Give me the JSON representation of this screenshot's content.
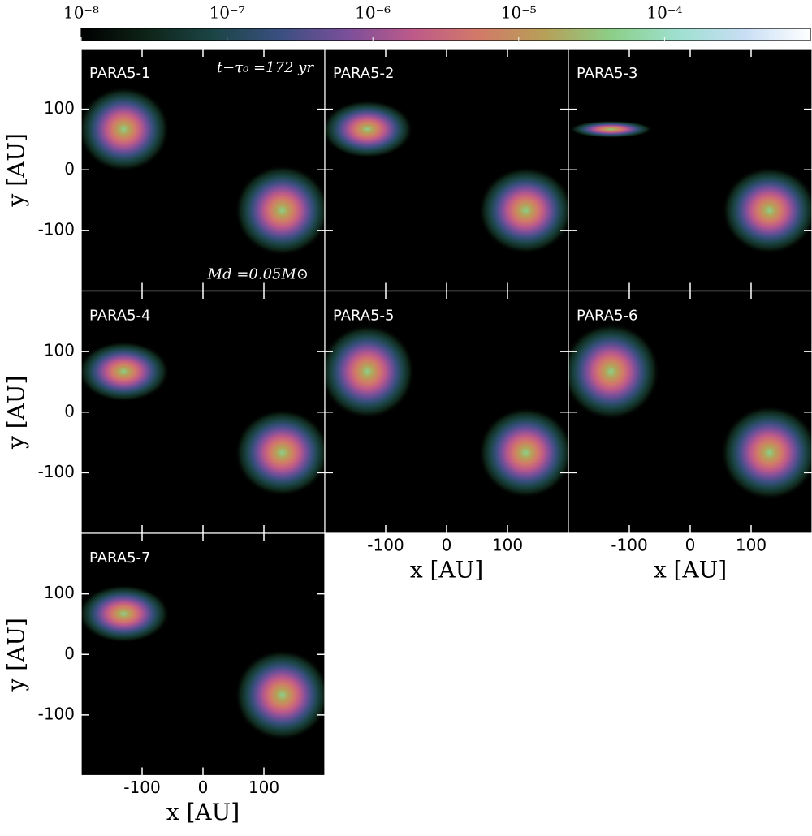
{
  "chart_data": {
    "type": "image",
    "colorbar": {
      "clim": [
        1e-08,
        0.001
      ],
      "log": true,
      "ticks": [
        {
          "value": 1e-08,
          "label": "10⁻⁸"
        },
        {
          "value": 1e-07,
          "label": "10⁻⁷"
        },
        {
          "value": 1e-06,
          "label": "10⁻⁶"
        },
        {
          "value": 1e-05,
          "label": "10⁻⁵"
        },
        {
          "value": 0.0001,
          "label": "10⁻⁴"
        }
      ],
      "colormap": [
        "#000000",
        "#0e2418",
        "#1b4546",
        "#3a4f80",
        "#7a4f9a",
        "#bd5a8a",
        "#d27a68",
        "#b6a058",
        "#8ccf88",
        "#9ee0d0",
        "#c8def4",
        "#ffffff"
      ]
    },
    "xlabel": "x [AU]",
    "ylabel": "y [AU]",
    "xlim": [
      -200,
      200
    ],
    "ylim": [
      -200,
      200
    ],
    "xticks": [
      -100,
      0,
      100
    ],
    "yticks": [
      -100,
      0,
      100
    ],
    "annotations": [
      "t−τ₀ =172 yr",
      "Md =0.05M⊙"
    ],
    "panels": [
      {
        "title": "PARA5-1",
        "disks": [
          {
            "x": -130,
            "y": 67,
            "rx": 75,
            "ry": 70
          },
          {
            "x": 130,
            "y": -67,
            "rx": 78,
            "ry": 75
          }
        ]
      },
      {
        "title": "PARA5-2",
        "disks": [
          {
            "x": -130,
            "y": 67,
            "rx": 75,
            "ry": 48
          },
          {
            "x": 130,
            "y": -67,
            "rx": 78,
            "ry": 72
          }
        ]
      },
      {
        "title": "PARA5-3",
        "disks": [
          {
            "x": -130,
            "y": 67,
            "rx": 68,
            "ry": 14
          },
          {
            "x": 130,
            "y": -67,
            "rx": 78,
            "ry": 72
          }
        ]
      },
      {
        "title": "PARA5-4",
        "disks": [
          {
            "x": -130,
            "y": 67,
            "rx": 75,
            "ry": 50
          },
          {
            "x": 130,
            "y": -67,
            "rx": 78,
            "ry": 72
          }
        ]
      },
      {
        "title": "PARA5-5",
        "disks": [
          {
            "x": -130,
            "y": 67,
            "rx": 78,
            "ry": 78
          },
          {
            "x": 130,
            "y": -67,
            "rx": 78,
            "ry": 75
          }
        ]
      },
      {
        "title": "PARA5-6",
        "disks": [
          {
            "x": -130,
            "y": 67,
            "rx": 80,
            "ry": 80
          },
          {
            "x": 130,
            "y": -67,
            "rx": 80,
            "ry": 78
          }
        ]
      },
      {
        "title": "PARA5-7",
        "disks": [
          {
            "x": -130,
            "y": 67,
            "rx": 75,
            "ry": 48
          },
          {
            "x": 130,
            "y": -67,
            "rx": 78,
            "ry": 75
          }
        ]
      }
    ]
  }
}
